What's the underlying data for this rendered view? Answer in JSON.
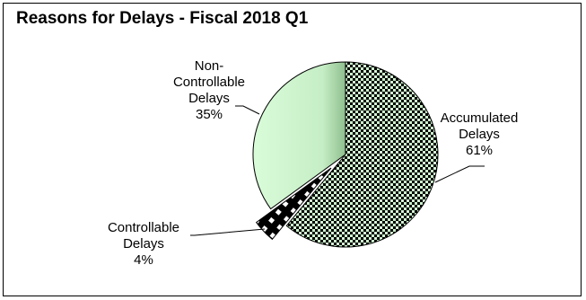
{
  "chart_data": {
    "type": "pie",
    "title": "Reasons for Delays - Fiscal 2018 Q1",
    "slices": [
      {
        "label_lines": [
          "Accumulated",
          "Delays",
          "61%"
        ],
        "value": 61,
        "fill": "checker-green"
      },
      {
        "label_lines": [
          "Controllable",
          "Delays",
          "4%"
        ],
        "value": 4,
        "fill": "black-diamond",
        "exploded": true
      },
      {
        "label_lines": [
          "Non-",
          "Controllable",
          "Delays",
          "35%"
        ],
        "value": 35,
        "fill": "light-green-gradient"
      }
    ]
  },
  "colors": {
    "accumulated_check": "#000000",
    "accumulated_light": "#ccf2cc",
    "controllable": "#000000",
    "noncontrollable_light": "#d9fcd9",
    "noncontrollable_dark": "#8fbf8f"
  }
}
